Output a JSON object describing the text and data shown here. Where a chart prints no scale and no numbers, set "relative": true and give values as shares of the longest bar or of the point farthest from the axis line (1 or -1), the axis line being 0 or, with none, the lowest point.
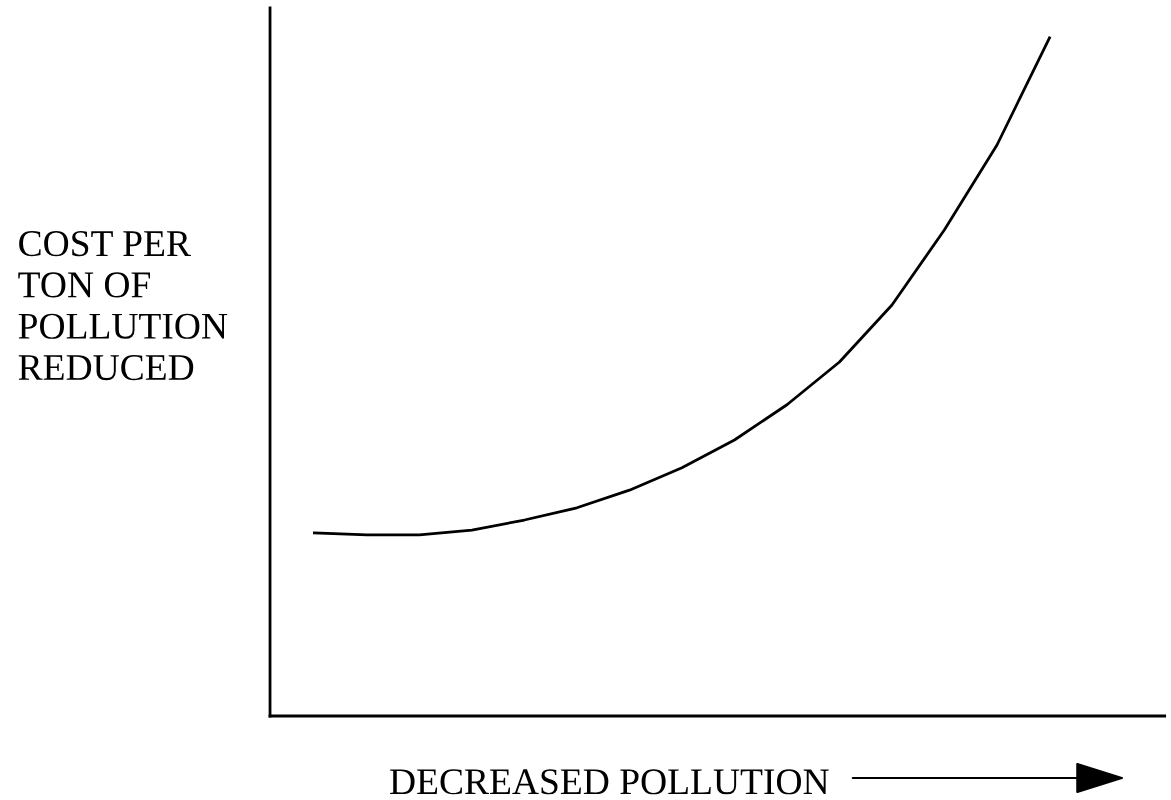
{
  "chart_data": {
    "type": "line",
    "relative": true,
    "xlabel": "DECREASED POLLUTION",
    "ylabel": "COST PER\nTON OF\nPOLLUTION\nREDUCED",
    "categories": [
      null,
      null,
      null,
      null,
      null,
      null,
      null,
      null,
      null,
      null,
      null,
      null,
      null,
      null,
      null
    ],
    "series": [
      {
        "color": "#000000",
        "values": [
          0.27,
          0.267,
          0.267,
          0.274,
          0.289,
          0.307,
          0.333,
          0.366,
          0.407,
          0.459,
          0.522,
          0.606,
          0.717,
          0.842,
          1
        ]
      }
    ],
    "marker": "none",
    "line_style": "solid",
    "legend": false,
    "tick_labels": false
  }
}
